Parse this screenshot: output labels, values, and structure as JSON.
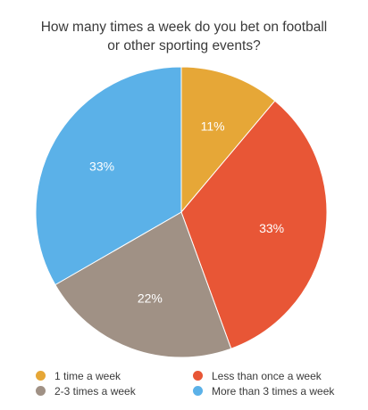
{
  "chart_data": {
    "type": "pie",
    "title_lines": [
      "How many times a week do you bet on football",
      "or other sporting events?"
    ],
    "categories": [
      "1 time a week",
      "Less than once a week",
      "2-3 times a week",
      "More than 3 times a week"
    ],
    "values": [
      11,
      33,
      22,
      33
    ],
    "data_labels": [
      "11%",
      "33%",
      "22%",
      "33%"
    ],
    "slice_order": [
      "1 time a week",
      "Less than once a week",
      "2-3 times a week",
      "More than 3 times a week"
    ],
    "start_angle_deg": 0,
    "direction": "clockwise",
    "legend_placement": "bottom",
    "colors": {
      "1 time a week": "#E6A737",
      "Less than once a week": "#E85636",
      "2-3 times a week": "#A09185",
      "More than 3 times a week": "#5BB1E8"
    },
    "label_color": "#ffffff",
    "legend": [
      [
        "1 time a week",
        "Less than once a week"
      ],
      [
        "2-3 times a week",
        "More than 3 times a week"
      ]
    ]
  }
}
